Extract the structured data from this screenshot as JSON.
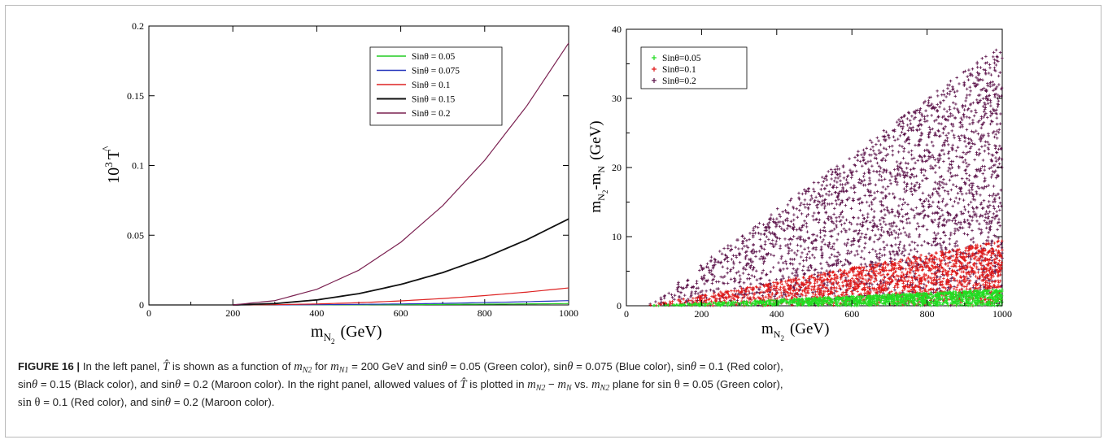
{
  "figure": {
    "label": "FIGURE 16 |",
    "caption": {
      "t1": " In the left panel, ",
      "t2": " is shown as a function of ",
      "t3": " for ",
      "t4": " = 200 GeV and sin",
      "t5": " = 0.05 (Green color), sin",
      "t6": " = 0.075 (Blue color), sin",
      "t7": " = 0.1 (Red color),",
      "t8": "sin",
      "t9": " = 0.15 (Black color), and sin",
      "t10": " = 0.2 (Maroon color). In the right panel, allowed values of ",
      "t11": " is plotted in ",
      "t12": " vs. ",
      "t13": " plane for ",
      "t14": " = 0.05 (Green color),",
      "t15": " = 0.1 (Red color), and sin",
      "t16": " = 0.2 (Maroon color).",
      "that": "T̂",
      "m": "m",
      "N2": "N2",
      "N1": "N1",
      "N": "N",
      "minus": " − ",
      "theta": "θ",
      "sin": "sin",
      "sin_theta": "sin θ"
    }
  },
  "chart_data": [
    {
      "type": "line",
      "ylabel_prefix": "10",
      "ylabel_exp": "3",
      "ylabel_sym": "T",
      "ylabel_hat": "^",
      "xlabel_m": "m",
      "xlabel_sub": "N",
      "xlabel_subsub": "2",
      "xlabel_unit": "(GeV)",
      "xlim": [
        0,
        1000
      ],
      "ylim": [
        0,
        0.2
      ],
      "xticks": [
        0,
        200,
        400,
        600,
        800,
        1000
      ],
      "xtick_labels": [
        "0",
        "200",
        "400",
        "600",
        "800",
        "1000"
      ],
      "yticks": [
        0,
        0.05,
        0.1,
        0.15,
        0.2
      ],
      "ytick_labels": [
        "0",
        "0.05",
        "0.1",
        "0.15",
        "0.2"
      ],
      "legend_position": "top-right",
      "series": [
        {
          "name": "Sinθ = 0.05",
          "color": "#22cc22",
          "x": [
            200,
            300,
            400,
            500,
            600,
            700,
            800,
            900,
            1000
          ],
          "values": [
            0,
            2e-05,
            7e-05,
            0.00014,
            0.00024,
            0.00038,
            0.00056,
            0.00077,
            0.00102
          ]
        },
        {
          "name": "Sinθ = 0.075",
          "color": "#2233bb",
          "x": [
            200,
            300,
            400,
            500,
            600,
            700,
            800,
            900,
            1000
          ],
          "values": [
            0,
            5e-05,
            0.00018,
            0.0004,
            0.0007,
            0.0011,
            0.0017,
            0.0023,
            0.0031
          ]
        },
        {
          "name": "Sinθ = 0.1",
          "color": "#dd2222",
          "x": [
            200,
            300,
            400,
            500,
            600,
            700,
            800,
            900,
            1000
          ],
          "values": [
            0,
            0.0002,
            0.0007,
            0.0016,
            0.0029,
            0.0046,
            0.0067,
            0.0092,
            0.0122
          ]
        },
        {
          "name": "Sinθ = 0.15",
          "color": "#111111",
          "x": [
            200,
            300,
            400,
            500,
            600,
            700,
            800,
            900,
            1000
          ],
          "values": [
            0,
            0.001,
            0.0036,
            0.0081,
            0.0147,
            0.0232,
            0.0339,
            0.0467,
            0.0617
          ]
        },
        {
          "name": "Sinθ = 0.2",
          "color": "#7a2050",
          "x": [
            200,
            300,
            400,
            500,
            600,
            700,
            800,
            900,
            1000
          ],
          "values": [
            0,
            0.0031,
            0.0112,
            0.0249,
            0.0449,
            0.0712,
            0.1037,
            0.1426,
            0.1878
          ]
        }
      ]
    },
    {
      "type": "scatter",
      "ylabel_m1": "m",
      "ylabel_sub1": "N",
      "ylabel_subsub1": "2",
      "ylabel_dash": "-m",
      "ylabel_sub2": "N",
      "ylabel_unit": "(GeV)",
      "xlabel_m": "m",
      "xlabel_sub": "N",
      "xlabel_subsub": "2",
      "xlabel_unit": "(GeV)",
      "xlim": [
        0,
        1000
      ],
      "ylim": [
        0,
        40
      ],
      "xticks": [
        0,
        200,
        400,
        600,
        800,
        1000
      ],
      "xtick_labels": [
        "0",
        "200",
        "400",
        "600",
        "800",
        "1000"
      ],
      "yticks": [
        0,
        10,
        20,
        30,
        40
      ],
      "ytick_labels": [
        "0",
        "10",
        "20",
        "30",
        "40"
      ],
      "legend_position": "top-left",
      "marker": "plus",
      "series": [
        {
          "name": "Sinθ=0.05",
          "color": "#22dd22",
          "x_range": [
            50,
            1000
          ],
          "y_max_at_xmax": 2.4
        },
        {
          "name": "Sinθ=0.1",
          "color": "#e01818",
          "x_range": [
            50,
            1000
          ],
          "y_max_at_xmax": 9.5
        },
        {
          "name": "Sinθ=0.2",
          "color": "#5a1048",
          "x_range": [
            50,
            1000
          ],
          "y_max_at_xmax": 38.0
        }
      ]
    }
  ]
}
